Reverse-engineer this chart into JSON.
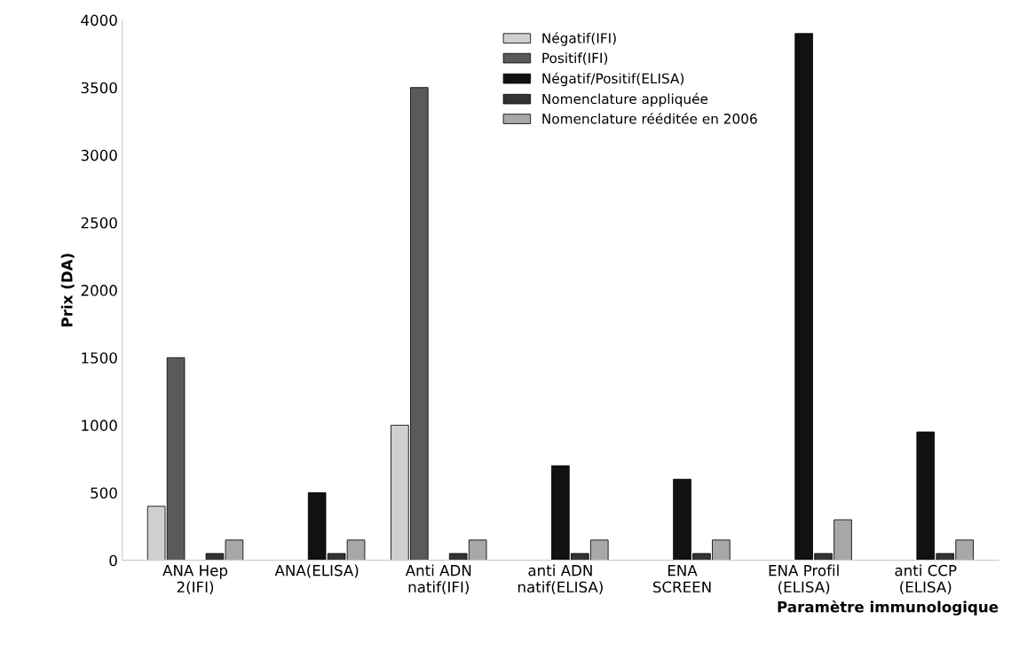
{
  "chart_data": {
    "type": "bar",
    "categories": [
      "ANA Hep\n2(IFI)",
      "ANA(ELISA)",
      "Anti ADN\nnatif(IFI)",
      "anti ADN\nnatif(ELISA)",
      "ENA\nSCREEN",
      "ENA Profil\n(ELISA)",
      "anti CCP\n(ELISA)"
    ],
    "series": [
      {
        "name": "Négatif(IFI)",
        "color": "#d0d0d0",
        "values": [
          400,
          null,
          1000,
          null,
          null,
          null,
          null
        ]
      },
      {
        "name": "Positif(IFI)",
        "color": "#5a5a5a",
        "values": [
          1500,
          null,
          3500,
          null,
          null,
          null,
          null
        ]
      },
      {
        "name": "Négatif/Positif(ELISA)",
        "color": "#111111",
        "values": [
          null,
          500,
          null,
          700,
          600,
          3900,
          950
        ]
      },
      {
        "name": "Nomenclature appliquée",
        "color": "#333333",
        "values": [
          50,
          50,
          50,
          50,
          50,
          50,
          50
        ]
      },
      {
        "name": "Nomenclature rééditée en 2006",
        "color": "#a8a8a8",
        "values": [
          150,
          150,
          150,
          150,
          150,
          300,
          150
        ]
      }
    ],
    "xlabel": "Paramètre immunologique",
    "ylabel": "Prix (DA)",
    "ylim": [
      0,
      4000
    ],
    "yticks": [
      0,
      500,
      1000,
      1500,
      2000,
      2500,
      3000,
      3500,
      4000
    ],
    "legend": "top"
  }
}
